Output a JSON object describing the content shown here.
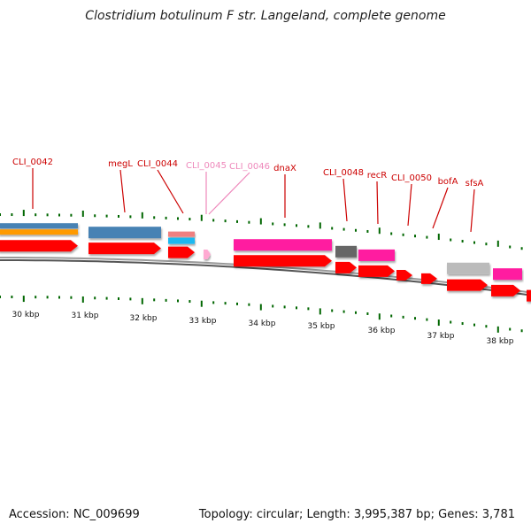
{
  "title": "Clostridium botulinum F str. Langeland, complete genome",
  "footer": {
    "accession": "Accession: NC_009699",
    "summary": "Topology: circular; Length: 3,995,387 bp; Genes: 3,781"
  },
  "colors": {
    "gene_red": "#ff0000",
    "gene_magenta": "#ff1aa0",
    "gene_blue": "#4682b4",
    "gene_orange": "#ff9a00",
    "gene_salmon": "#f08080",
    "gene_cyan": "#1ab8f0",
    "gene_pink_light": "#ffaad2",
    "gene_dark_gray": "#666666",
    "gene_light_gray": "#bbbbbb",
    "label_red": "#cc0000",
    "label_pink": "#ee88bb",
    "tick_green": "#006600",
    "backbone": "#777777"
  },
  "scale": {
    "unit": "kbp",
    "labels": [
      "30 kbp",
      "31 kbp",
      "32 kbp",
      "33 kbp",
      "34 kbp",
      "35 kbp",
      "36 kbp",
      "37 kbp",
      "38 kbp"
    ]
  },
  "gene_labels": [
    {
      "text": "CLI_0042",
      "color": "label_red"
    },
    {
      "text": "megL",
      "color": "label_red"
    },
    {
      "text": "CLI_0044",
      "color": "label_red"
    },
    {
      "text": "CLI_0045",
      "color": "label_pink"
    },
    {
      "text": "CLI_0046",
      "color": "label_pink"
    },
    {
      "text": "dnaX",
      "color": "label_red"
    },
    {
      "text": "CLI_0048",
      "color": "label_red"
    },
    {
      "text": "recR",
      "color": "label_red"
    },
    {
      "text": "CLI_0050",
      "color": "label_red"
    },
    {
      "text": "bofA",
      "color": "label_red"
    },
    {
      "text": "sfsA",
      "color": "label_red"
    }
  ]
}
